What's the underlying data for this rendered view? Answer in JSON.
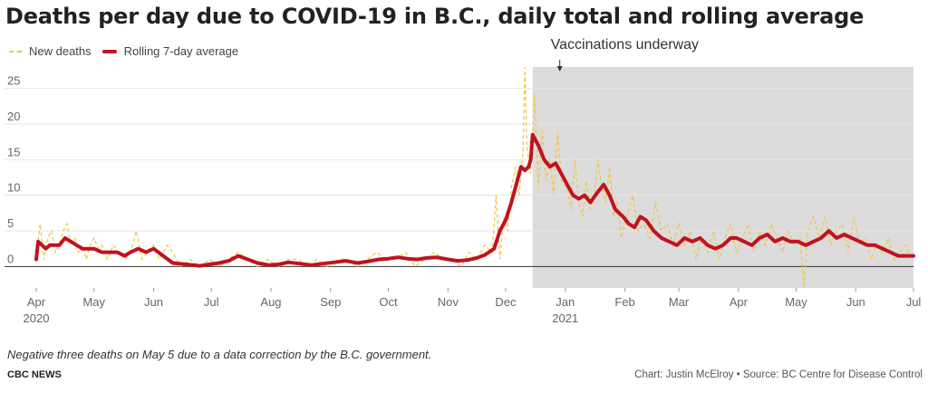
{
  "title": "Deaths per day due to COVID-19 in B.C., daily total and rolling average",
  "legend": {
    "new_deaths": "New deaths",
    "rolling_avg": "Rolling 7-day average"
  },
  "colors": {
    "new_deaths": "#f2c53d",
    "rolling_avg": "#c1121f",
    "shade": "#dcdcdc"
  },
  "annotation": {
    "text": "Vaccinations underway"
  },
  "note": "Negative three deaths on May 5 due to a data correction by the B.C. government.",
  "brand": "CBC NEWS",
  "credit": "Chart: Justin McElroy • Source: BC Centre for Disease Control",
  "chart_data": {
    "type": "line",
    "x_axis": {
      "ticks": [
        {
          "date": "2020-04-01",
          "label": "Apr",
          "year": "2020"
        },
        {
          "date": "2020-05-01",
          "label": "May"
        },
        {
          "date": "2020-06-01",
          "label": "Jun"
        },
        {
          "date": "2020-07-01",
          "label": "Jul"
        },
        {
          "date": "2020-08-01",
          "label": "Aug"
        },
        {
          "date": "2020-09-01",
          "label": "Sep"
        },
        {
          "date": "2020-10-01",
          "label": "Oct"
        },
        {
          "date": "2020-11-01",
          "label": "Nov"
        },
        {
          "date": "2020-12-01",
          "label": "Dec"
        },
        {
          "date": "2021-01-01",
          "label": "Jan",
          "year": "2021"
        },
        {
          "date": "2021-02-01",
          "label": "Feb"
        },
        {
          "date": "2021-03-01",
          "label": "Mar"
        },
        {
          "date": "2021-04-01",
          "label": "Apr"
        },
        {
          "date": "2021-05-01",
          "label": "May"
        },
        {
          "date": "2021-06-01",
          "label": "Jun"
        },
        {
          "date": "2021-07-01",
          "label": "Jul"
        }
      ],
      "range": [
        "2020-04-01",
        "2021-07-01"
      ]
    },
    "y_axis": {
      "ticks": [
        0,
        5,
        10,
        15,
        20,
        25
      ],
      "ylim": [
        -3,
        28
      ]
    },
    "shaded_period": {
      "start": "2020-12-15",
      "end": "2021-07-01"
    },
    "series": [
      {
        "name": "New deaths",
        "style": "dashed",
        "points": [
          [
            "2020-04-01",
            1
          ],
          [
            "2020-04-03",
            6
          ],
          [
            "2020-04-05",
            1
          ],
          [
            "2020-04-07",
            4
          ],
          [
            "2020-04-09",
            5
          ],
          [
            "2020-04-11",
            2
          ],
          [
            "2020-04-13",
            3
          ],
          [
            "2020-04-15",
            5
          ],
          [
            "2020-04-17",
            6
          ],
          [
            "2020-04-19",
            3
          ],
          [
            "2020-04-21",
            4
          ],
          [
            "2020-04-23",
            2
          ],
          [
            "2020-04-25",
            3
          ],
          [
            "2020-04-27",
            1
          ],
          [
            "2020-04-29",
            3
          ],
          [
            "2020-05-01",
            4
          ],
          [
            "2020-05-04",
            2
          ],
          [
            "2020-05-05",
            3
          ],
          [
            "2020-05-08",
            1
          ],
          [
            "2020-05-11",
            3
          ],
          [
            "2020-05-14",
            2
          ],
          [
            "2020-05-17",
            1
          ],
          [
            "2020-05-20",
            2
          ],
          [
            "2020-05-23",
            5
          ],
          [
            "2020-05-26",
            1
          ],
          [
            "2020-05-29",
            2
          ],
          [
            "2020-06-01",
            3
          ],
          [
            "2020-06-04",
            1
          ],
          [
            "2020-06-08",
            3
          ],
          [
            "2020-06-11",
            2
          ],
          [
            "2020-06-15",
            0
          ],
          [
            "2020-06-20",
            1
          ],
          [
            "2020-06-25",
            0
          ],
          [
            "2020-06-30",
            1
          ],
          [
            "2020-07-05",
            0
          ],
          [
            "2020-07-10",
            1
          ],
          [
            "2020-07-15",
            2
          ],
          [
            "2020-07-20",
            1
          ],
          [
            "2020-07-25",
            0
          ],
          [
            "2020-07-30",
            1
          ],
          [
            "2020-08-05",
            0
          ],
          [
            "2020-08-10",
            1
          ],
          [
            "2020-08-15",
            1
          ],
          [
            "2020-08-20",
            0
          ],
          [
            "2020-08-25",
            1
          ],
          [
            "2020-08-30",
            0
          ],
          [
            "2020-09-05",
            1
          ],
          [
            "2020-09-10",
            1
          ],
          [
            "2020-09-15",
            0
          ],
          [
            "2020-09-20",
            1
          ],
          [
            "2020-09-25",
            2
          ],
          [
            "2020-09-30",
            1
          ],
          [
            "2020-10-05",
            1
          ],
          [
            "2020-10-10",
            2
          ],
          [
            "2020-10-15",
            0
          ],
          [
            "2020-10-20",
            1
          ],
          [
            "2020-10-25",
            2
          ],
          [
            "2020-10-30",
            1
          ],
          [
            "2020-11-04",
            1
          ],
          [
            "2020-11-08",
            0
          ],
          [
            "2020-11-12",
            2
          ],
          [
            "2020-11-16",
            1
          ],
          [
            "2020-11-20",
            3
          ],
          [
            "2020-11-24",
            2
          ],
          [
            "2020-11-26",
            10
          ],
          [
            "2020-11-28",
            1
          ],
          [
            "2020-11-30",
            7
          ],
          [
            "2020-12-02",
            5
          ],
          [
            "2020-12-04",
            11
          ],
          [
            "2020-12-06",
            14
          ],
          [
            "2020-12-08",
            10
          ],
          [
            "2020-12-10",
            16
          ],
          [
            "2020-12-11",
            28
          ],
          [
            "2020-12-12",
            17
          ],
          [
            "2020-12-14",
            13
          ],
          [
            "2020-12-16",
            24
          ],
          [
            "2020-12-18",
            11
          ],
          [
            "2020-12-20",
            19
          ],
          [
            "2020-12-22",
            12
          ],
          [
            "2020-12-24",
            15
          ],
          [
            "2020-12-26",
            10
          ],
          [
            "2020-12-28",
            19
          ],
          [
            "2020-12-30",
            12
          ],
          [
            "2021-01-02",
            11
          ],
          [
            "2021-01-04",
            8
          ],
          [
            "2021-01-06",
            15
          ],
          [
            "2021-01-08",
            9
          ],
          [
            "2021-01-10",
            7
          ],
          [
            "2021-01-12",
            12
          ],
          [
            "2021-01-14",
            8
          ],
          [
            "2021-01-16",
            10
          ],
          [
            "2021-01-18",
            15
          ],
          [
            "2021-01-20",
            11
          ],
          [
            "2021-01-22",
            9
          ],
          [
            "2021-01-24",
            14
          ],
          [
            "2021-01-26",
            7
          ],
          [
            "2021-01-28",
            9
          ],
          [
            "2021-01-30",
            4
          ],
          [
            "2021-02-02",
            7
          ],
          [
            "2021-02-05",
            10
          ],
          [
            "2021-02-08",
            5
          ],
          [
            "2021-02-11",
            6
          ],
          [
            "2021-02-14",
            4
          ],
          [
            "2021-02-17",
            9
          ],
          [
            "2021-02-20",
            5
          ],
          [
            "2021-02-23",
            6
          ],
          [
            "2021-02-26",
            3
          ],
          [
            "2021-03-01",
            6
          ],
          [
            "2021-03-04",
            3
          ],
          [
            "2021-03-07",
            5
          ],
          [
            "2021-03-10",
            1
          ],
          [
            "2021-03-13",
            4
          ],
          [
            "2021-03-16",
            2
          ],
          [
            "2021-03-19",
            5
          ],
          [
            "2021-03-22",
            1
          ],
          [
            "2021-03-25",
            4
          ],
          [
            "2021-03-28",
            6
          ],
          [
            "2021-03-31",
            2
          ],
          [
            "2021-04-03",
            4
          ],
          [
            "2021-04-06",
            6
          ],
          [
            "2021-04-09",
            2
          ],
          [
            "2021-04-12",
            5
          ],
          [
            "2021-04-15",
            3
          ],
          [
            "2021-04-18",
            6
          ],
          [
            "2021-04-21",
            4
          ],
          [
            "2021-04-24",
            2
          ],
          [
            "2021-04-27",
            5
          ],
          [
            "2021-04-30",
            3
          ],
          [
            "2021-05-03",
            4
          ],
          [
            "2021-05-05",
            -3
          ],
          [
            "2021-05-07",
            5
          ],
          [
            "2021-05-10",
            7
          ],
          [
            "2021-05-13",
            4
          ],
          [
            "2021-05-16",
            7
          ],
          [
            "2021-05-19",
            3
          ],
          [
            "2021-05-22",
            5
          ],
          [
            "2021-05-25",
            6
          ],
          [
            "2021-05-28",
            2
          ],
          [
            "2021-05-31",
            7
          ],
          [
            "2021-06-03",
            3
          ],
          [
            "2021-06-06",
            4
          ],
          [
            "2021-06-09",
            1
          ],
          [
            "2021-06-12",
            3
          ],
          [
            "2021-06-15",
            2
          ],
          [
            "2021-06-18",
            4
          ],
          [
            "2021-06-21",
            1
          ],
          [
            "2021-06-24",
            2
          ],
          [
            "2021-06-27",
            3
          ],
          [
            "2021-06-30",
            1
          ]
        ]
      },
      {
        "name": "Rolling 7-day average",
        "style": "solid",
        "points": [
          [
            "2020-04-01",
            1
          ],
          [
            "2020-04-02",
            3.5
          ],
          [
            "2020-04-04",
            3
          ],
          [
            "2020-04-06",
            2.5
          ],
          [
            "2020-04-08",
            3
          ],
          [
            "2020-04-10",
            3
          ],
          [
            "2020-04-13",
            3
          ],
          [
            "2020-04-16",
            4
          ],
          [
            "2020-04-19",
            3.5
          ],
          [
            "2020-04-22",
            3
          ],
          [
            "2020-04-25",
            2.5
          ],
          [
            "2020-04-28",
            2.5
          ],
          [
            "2020-05-01",
            2.5
          ],
          [
            "2020-05-05",
            2
          ],
          [
            "2020-05-09",
            2
          ],
          [
            "2020-05-13",
            2
          ],
          [
            "2020-05-17",
            1.5
          ],
          [
            "2020-05-20",
            2
          ],
          [
            "2020-05-24",
            2.5
          ],
          [
            "2020-05-28",
            2
          ],
          [
            "2020-06-01",
            2.5
          ],
          [
            "2020-06-06",
            1.5
          ],
          [
            "2020-06-11",
            0.5
          ],
          [
            "2020-06-18",
            0.3
          ],
          [
            "2020-06-25",
            0.1
          ],
          [
            "2020-06-30",
            0.3
          ],
          [
            "2020-07-05",
            0.5
          ],
          [
            "2020-07-10",
            0.8
          ],
          [
            "2020-07-15",
            1.5
          ],
          [
            "2020-07-20",
            1
          ],
          [
            "2020-07-25",
            0.5
          ],
          [
            "2020-07-31",
            0.2
          ],
          [
            "2020-08-05",
            0.3
          ],
          [
            "2020-08-10",
            0.6
          ],
          [
            "2020-08-16",
            0.4
          ],
          [
            "2020-08-22",
            0.2
          ],
          [
            "2020-08-28",
            0.4
          ],
          [
            "2020-09-03",
            0.6
          ],
          [
            "2020-09-09",
            0.8
          ],
          [
            "2020-09-15",
            0.5
          ],
          [
            "2020-09-20",
            0.7
          ],
          [
            "2020-09-26",
            1
          ],
          [
            "2020-10-01",
            1.1
          ],
          [
            "2020-10-06",
            1.3
          ],
          [
            "2020-10-11",
            1.1
          ],
          [
            "2020-10-16",
            1
          ],
          [
            "2020-10-21",
            1.2
          ],
          [
            "2020-10-26",
            1.3
          ],
          [
            "2020-11-01",
            1
          ],
          [
            "2020-11-06",
            0.8
          ],
          [
            "2020-11-11",
            0.9
          ],
          [
            "2020-11-16",
            1.2
          ],
          [
            "2020-11-20",
            1.6
          ],
          [
            "2020-11-25",
            2.5
          ],
          [
            "2020-11-28",
            5
          ],
          [
            "2020-12-01",
            6.5
          ],
          [
            "2020-12-04",
            9
          ],
          [
            "2020-12-07",
            12
          ],
          [
            "2020-12-09",
            14
          ],
          [
            "2020-12-11",
            13.5
          ],
          [
            "2020-12-13",
            14
          ],
          [
            "2020-12-14",
            15
          ],
          [
            "2020-12-15",
            18.5
          ],
          [
            "2020-12-18",
            17
          ],
          [
            "2020-12-21",
            15
          ],
          [
            "2020-12-24",
            14
          ],
          [
            "2020-12-27",
            14.5
          ],
          [
            "2020-12-30",
            13
          ],
          [
            "2021-01-02",
            11.5
          ],
          [
            "2021-01-05",
            10
          ],
          [
            "2021-01-08",
            9.5
          ],
          [
            "2021-01-11",
            10
          ],
          [
            "2021-01-14",
            9
          ],
          [
            "2021-01-18",
            10.5
          ],
          [
            "2021-01-21",
            11.5
          ],
          [
            "2021-01-24",
            10
          ],
          [
            "2021-01-27",
            8
          ],
          [
            "2021-01-31",
            7
          ],
          [
            "2021-02-03",
            6
          ],
          [
            "2021-02-06",
            5.5
          ],
          [
            "2021-02-09",
            7
          ],
          [
            "2021-02-12",
            6.5
          ],
          [
            "2021-02-16",
            5
          ],
          [
            "2021-02-20",
            4
          ],
          [
            "2021-02-24",
            3.5
          ],
          [
            "2021-02-28",
            3
          ],
          [
            "2021-03-04",
            4
          ],
          [
            "2021-03-08",
            3.5
          ],
          [
            "2021-03-12",
            4
          ],
          [
            "2021-03-16",
            3
          ],
          [
            "2021-03-20",
            2.5
          ],
          [
            "2021-03-24",
            3
          ],
          [
            "2021-03-28",
            4
          ],
          [
            "2021-03-31",
            4
          ],
          [
            "2021-04-04",
            3.5
          ],
          [
            "2021-04-08",
            3
          ],
          [
            "2021-04-12",
            4
          ],
          [
            "2021-04-16",
            4.5
          ],
          [
            "2021-04-20",
            3.5
          ],
          [
            "2021-04-24",
            4
          ],
          [
            "2021-04-28",
            3.5
          ],
          [
            "2021-05-02",
            3.5
          ],
          [
            "2021-05-06",
            3
          ],
          [
            "2021-05-10",
            3.5
          ],
          [
            "2021-05-14",
            4
          ],
          [
            "2021-05-18",
            5
          ],
          [
            "2021-05-22",
            4
          ],
          [
            "2021-05-26",
            4.5
          ],
          [
            "2021-05-30",
            4
          ],
          [
            "2021-06-03",
            3.5
          ],
          [
            "2021-06-07",
            3
          ],
          [
            "2021-06-11",
            3
          ],
          [
            "2021-06-15",
            2.5
          ],
          [
            "2021-06-19",
            2
          ],
          [
            "2021-06-23",
            1.5
          ],
          [
            "2021-06-27",
            1.5
          ],
          [
            "2021-07-01",
            1.5
          ]
        ]
      }
    ]
  }
}
